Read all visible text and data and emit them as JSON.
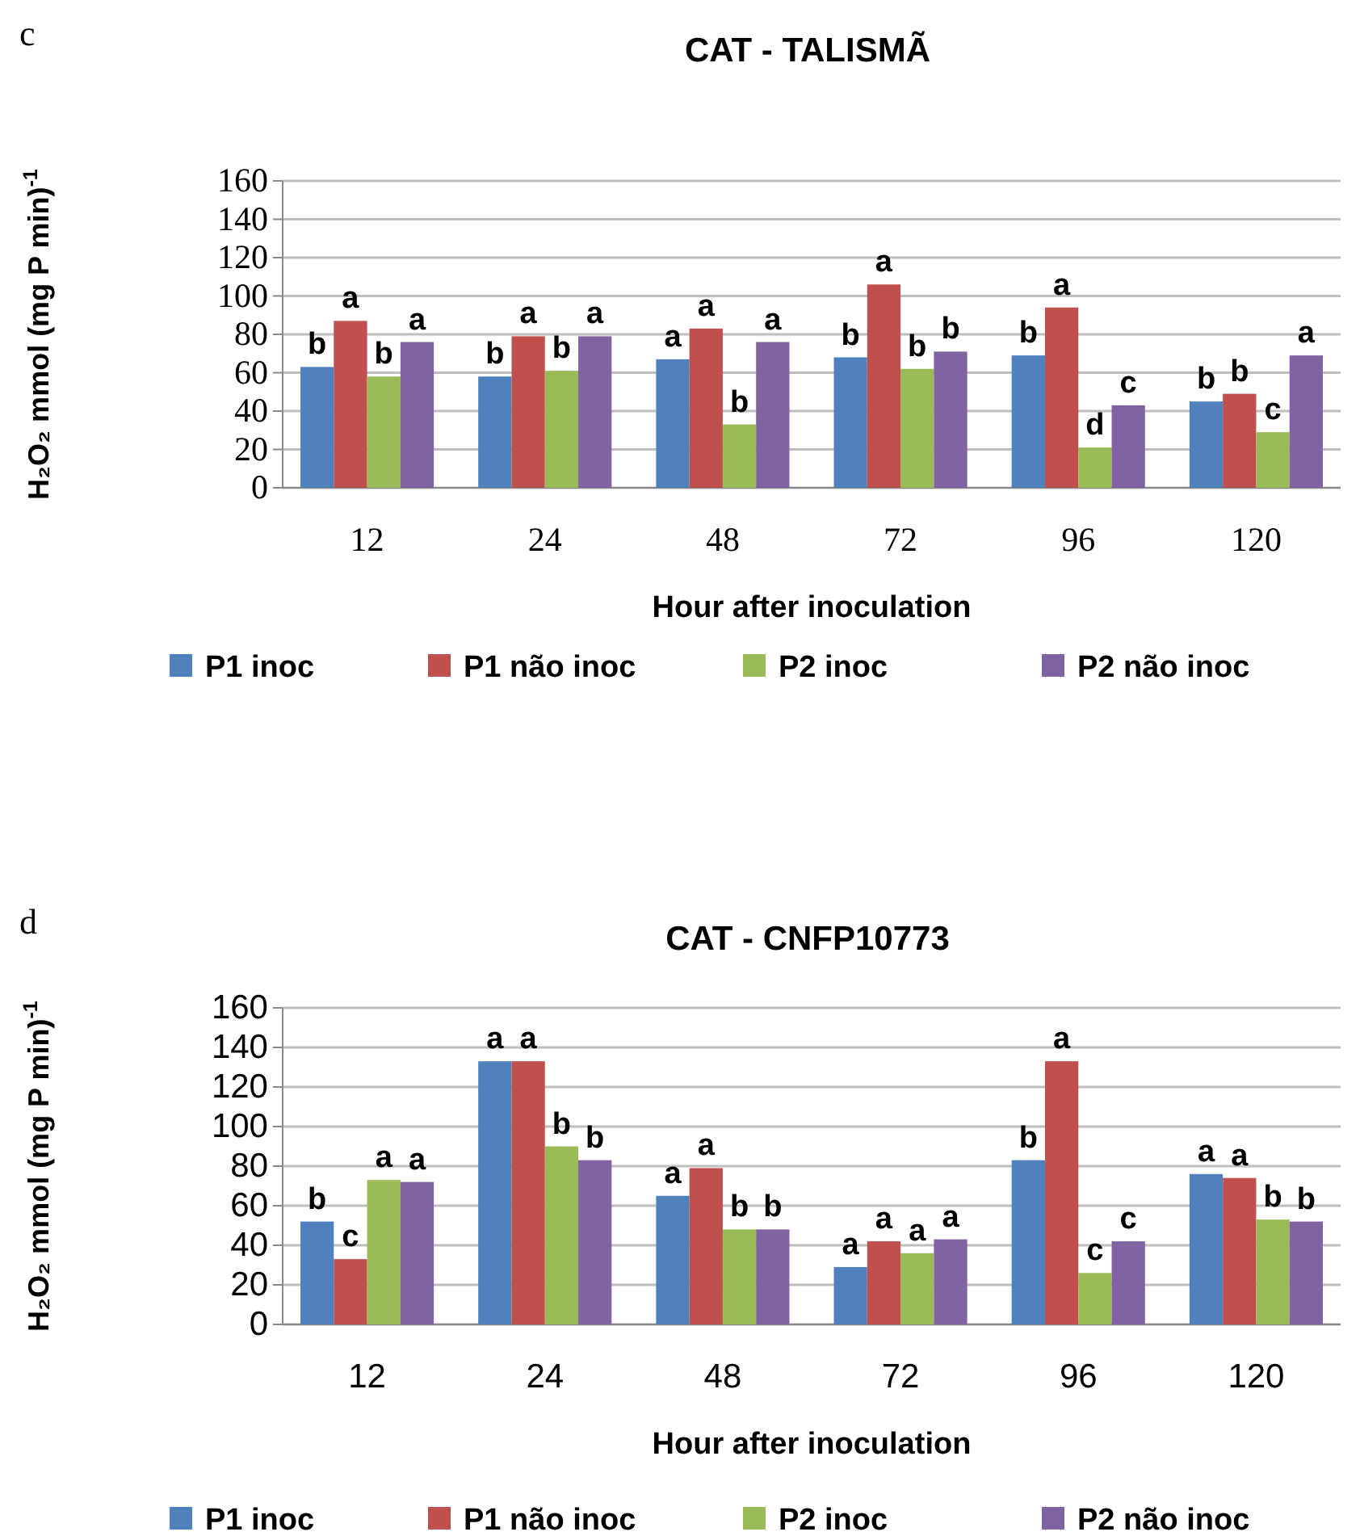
{
  "chart_data": [
    {
      "type": "bar",
      "title": "CAT - TALISMÃ",
      "xlabel": "Hour after inoculation",
      "ylabel": "H₂O₂ mmol (mg P min)$^{-1}$",
      "annotations": [
        "c"
      ],
      "categories": [
        "12",
        "24",
        "48",
        "72",
        "96",
        "120"
      ],
      "ylim": [
        0,
        160
      ],
      "yticks": [
        0,
        20,
        40,
        60,
        80,
        100,
        120,
        140,
        160
      ],
      "grid": "y",
      "legend": "bottom",
      "series": [
        {
          "name": "P1 inoc",
          "color": "#4f81bd",
          "values": [
            63,
            58,
            67,
            68,
            69,
            45
          ],
          "value_labels": [
            "b",
            "b",
            "a",
            "b",
            "b",
            "b"
          ]
        },
        {
          "name": "P1 não inoc",
          "color": "#c0504d",
          "values": [
            87,
            79,
            83,
            106,
            94,
            49
          ],
          "value_labels": [
            "a",
            "a",
            "a",
            "a",
            "a",
            "b"
          ]
        },
        {
          "name": "P2 inoc",
          "color": "#9bbb59",
          "values": [
            58,
            61,
            33,
            62,
            21,
            29
          ],
          "value_labels": [
            "b",
            "b",
            "b",
            "b",
            "d",
            "c"
          ]
        },
        {
          "name": "P2 não inoc",
          "color": "#8064a2",
          "values": [
            76,
            79,
            76,
            71,
            43,
            69
          ],
          "value_labels": [
            "a",
            "a",
            "a",
            "b",
            "c",
            "a"
          ]
        }
      ]
    },
    {
      "type": "bar",
      "title": "CAT - CNFP10773",
      "xlabel": "Hour after inoculation",
      "ylabel": "H₂O₂ mmol (mg P min)$^{-1}$",
      "annotations": [
        "d"
      ],
      "categories": [
        "12",
        "24",
        "48",
        "72",
        "96",
        "120"
      ],
      "ylim": [
        0,
        160
      ],
      "yticks": [
        0,
        20,
        40,
        60,
        80,
        100,
        120,
        140,
        160
      ],
      "grid": "y",
      "legend": "bottom",
      "series": [
        {
          "name": "P1 inoc",
          "color": "#4f81bd",
          "values": [
            52,
            133,
            65,
            29,
            83,
            76
          ],
          "value_labels": [
            "b",
            "a",
            "a",
            "a",
            "b",
            "a"
          ]
        },
        {
          "name": "P1 não inoc",
          "color": "#c0504d",
          "values": [
            33,
            133,
            79,
            42,
            133,
            74
          ],
          "value_labels": [
            "c",
            "a",
            "a",
            "a",
            "a",
            "a"
          ]
        },
        {
          "name": "P2 inoc",
          "color": "#9bbb59",
          "values": [
            73,
            90,
            48,
            36,
            26,
            53
          ],
          "value_labels": [
            "a",
            "b",
            "b",
            "a",
            "c",
            "b"
          ]
        },
        {
          "name": "P2 não inoc",
          "color": "#8064a2",
          "values": [
            72,
            83,
            48,
            43,
            42,
            52
          ],
          "value_labels": [
            "a",
            "b",
            "b",
            "a",
            "c",
            "b"
          ]
        }
      ]
    }
  ]
}
